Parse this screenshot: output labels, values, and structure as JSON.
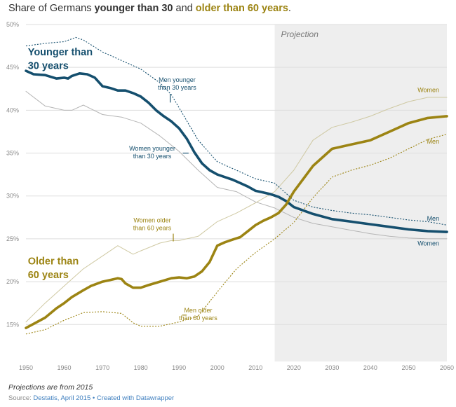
{
  "title": {
    "prefix": "Share  of Germans ",
    "young": "younger than 30",
    "middle": " and ",
    "old": "older than 60 years",
    "suffix": "."
  },
  "footer": {
    "note": "Projections  are from 2015",
    "source_label": "Source: ",
    "source_link": "Destatis, April 2015",
    "separator": " • ",
    "credit_link": "Created with Datawrapper"
  },
  "colors": {
    "young": "#154f6e",
    "old": "#9c8413",
    "grid": "#dddddd",
    "projection_band": "#eeeeee",
    "women_thin_old": "#cfc9a3",
    "women_thin_young": "#b5b5b5",
    "axis_text": "#8a8a8a"
  },
  "chart_data": {
    "type": "line",
    "title": "Share  of Germans younger than 30 and older than 60 years.",
    "xlim": [
      1950,
      2060
    ],
    "ylim": [
      12,
      50
    ],
    "x_ticks": [
      "1950",
      "1960",
      "1970",
      "1980",
      "1990",
      "2000",
      "2010",
      "2020",
      "2030",
      "2040",
      "2050",
      "2060"
    ],
    "y_ticks": [
      "15%",
      "20%",
      "25%",
      "30%",
      "35%",
      "40%",
      "45%",
      "50%"
    ],
    "y_tick_values": [
      15,
      20,
      25,
      30,
      35,
      40,
      45,
      50
    ],
    "grid": true,
    "projection": {
      "label": "Projection",
      "from": 2015,
      "to": 2060
    },
    "series": [
      {
        "name": "Younger than 30 years",
        "group": "young",
        "style": "thick",
        "x": [
          1950,
          1952,
          1955,
          1958,
          1960,
          1961,
          1962,
          1964,
          1966,
          1968,
          1970,
          1972,
          1974,
          1976,
          1978,
          1980,
          1982,
          1984,
          1986,
          1988,
          1990,
          1992,
          1994,
          1996,
          1998,
          2000,
          2002,
          2004,
          2006,
          2008,
          2010,
          2012,
          2014,
          2016,
          2018,
          2020,
          2025,
          2030,
          2035,
          2040,
          2045,
          2050,
          2055,
          2060
        ],
        "y": [
          44.6,
          44.2,
          44.1,
          43.7,
          43.8,
          43.7,
          44.0,
          44.3,
          44.2,
          43.8,
          42.8,
          42.6,
          42.3,
          42.3,
          42.0,
          41.6,
          40.9,
          40.0,
          39.3,
          38.7,
          37.9,
          36.7,
          35.1,
          33.8,
          33.0,
          32.5,
          32.2,
          31.9,
          31.5,
          31.1,
          30.6,
          30.4,
          30.2,
          29.9,
          29.4,
          28.7,
          27.9,
          27.3,
          27.0,
          26.7,
          26.4,
          26.1,
          25.9,
          25.8
        ]
      },
      {
        "name": "Men younger than 30 years",
        "group": "young",
        "style": "dotted",
        "x": [
          1950,
          1955,
          1960,
          1963,
          1965,
          1970,
          1975,
          1980,
          1985,
          1988,
          1990,
          1995,
          2000,
          2005,
          2010,
          2015,
          2020,
          2025,
          2030,
          2035,
          2040,
          2045,
          2050,
          2055,
          2060
        ],
        "y": [
          47.5,
          47.8,
          48.0,
          48.5,
          48.2,
          46.8,
          45.8,
          44.8,
          43.2,
          41.8,
          40.3,
          36.5,
          34.0,
          33.0,
          32.0,
          31.5,
          29.5,
          28.7,
          28.3,
          28.0,
          27.8,
          27.5,
          27.2,
          27.0,
          26.6
        ]
      },
      {
        "name": "Women younger than 30 years",
        "group": "young",
        "style": "thin",
        "x": [
          1950,
          1955,
          1960,
          1962,
          1965,
          1970,
          1975,
          1980,
          1985,
          1990,
          1995,
          2000,
          2005,
          2010,
          2015,
          2020,
          2025,
          2030,
          2035,
          2040,
          2045,
          2050,
          2055,
          2060
        ],
        "y": [
          42.2,
          40.5,
          40.0,
          40.0,
          40.6,
          39.5,
          39.2,
          38.5,
          37.0,
          35.2,
          33.0,
          31.0,
          30.5,
          29.3,
          28.6,
          27.5,
          26.8,
          26.4,
          26.0,
          25.6,
          25.3,
          25.1,
          25.0,
          25.0
        ]
      },
      {
        "name": "Older than 60 years",
        "group": "old",
        "style": "thick",
        "x": [
          1950,
          1955,
          1958,
          1960,
          1962,
          1965,
          1967,
          1970,
          1972,
          1974,
          1975,
          1976,
          1978,
          1980,
          1982,
          1985,
          1988,
          1990,
          1992,
          1994,
          1996,
          1998,
          2000,
          2002,
          2004,
          2006,
          2008,
          2010,
          2012,
          2014,
          2016,
          2018,
          2020,
          2025,
          2030,
          2035,
          2040,
          2045,
          2050,
          2055,
          2060
        ],
        "y": [
          14.6,
          15.8,
          16.9,
          17.5,
          18.2,
          19.0,
          19.5,
          20.0,
          20.2,
          20.4,
          20.3,
          19.8,
          19.3,
          19.3,
          19.6,
          20.0,
          20.4,
          20.5,
          20.4,
          20.6,
          21.2,
          22.3,
          24.2,
          24.6,
          24.9,
          25.2,
          25.9,
          26.6,
          27.1,
          27.5,
          28.0,
          29.0,
          30.5,
          33.5,
          35.5,
          36.0,
          36.5,
          37.5,
          38.5,
          39.1,
          39.3
        ]
      },
      {
        "name": "Women older than 60 years",
        "group": "old",
        "style": "thin",
        "x": [
          1950,
          1955,
          1960,
          1965,
          1970,
          1974,
          1976,
          1978,
          1980,
          1985,
          1988,
          1990,
          1995,
          2000,
          2005,
          2010,
          2015,
          2020,
          2025,
          2030,
          2035,
          2040,
          2045,
          2050,
          2055,
          2060
        ],
        "y": [
          15.3,
          17.5,
          19.5,
          21.5,
          23.0,
          24.2,
          23.7,
          23.2,
          23.6,
          24.5,
          24.8,
          24.8,
          25.3,
          27.0,
          28.0,
          29.2,
          30.5,
          33.0,
          36.5,
          38.0,
          38.6,
          39.3,
          40.2,
          41.0,
          41.5,
          41.5
        ]
      },
      {
        "name": "Men older than 60 years",
        "group": "old",
        "style": "dotted",
        "x": [
          1950,
          1955,
          1960,
          1965,
          1970,
          1975,
          1978,
          1980,
          1985,
          1990,
          1995,
          2000,
          2005,
          2010,
          2015,
          2020,
          2025,
          2030,
          2035,
          2040,
          2045,
          2050,
          2055,
          2060
        ],
        "y": [
          13.9,
          14.4,
          15.5,
          16.4,
          16.5,
          16.3,
          15.2,
          14.8,
          14.8,
          15.3,
          16.0,
          18.8,
          21.5,
          23.4,
          25.0,
          26.9,
          29.8,
          32.2,
          33.0,
          33.6,
          34.4,
          35.5,
          36.6,
          37.2
        ]
      }
    ],
    "annotations": [
      {
        "text": "Younger than",
        "group": "young",
        "style": "big",
        "x": 1950.5,
        "y": 46.4
      },
      {
        "text": "30 years",
        "group": "young",
        "style": "big",
        "x": 1950.5,
        "y": 44.8
      },
      {
        "text": "Men younger",
        "group": "young",
        "style": "small",
        "x": 1989.5,
        "y": 43.3,
        "anchor": "middle"
      },
      {
        "text": "than 30 years",
        "group": "young",
        "style": "small",
        "x": 1989.5,
        "y": 42.4,
        "anchor": "middle"
      },
      {
        "text": "Women younger",
        "group": "young",
        "style": "small",
        "x": 1983.0,
        "y": 35.3,
        "anchor": "middle"
      },
      {
        "text": "than 30 years",
        "group": "young",
        "style": "small",
        "x": 1983.0,
        "y": 34.4,
        "anchor": "middle"
      },
      {
        "text": "Women older",
        "group": "old",
        "style": "small",
        "x": 1983.0,
        "y": 26.9,
        "anchor": "middle"
      },
      {
        "text": "than 60 years",
        "group": "old",
        "style": "small",
        "x": 1983.0,
        "y": 26.0,
        "anchor": "middle"
      },
      {
        "text": "Older than",
        "group": "old",
        "style": "big",
        "x": 1950.5,
        "y": 22.0
      },
      {
        "text": "60 years",
        "group": "old",
        "style": "big",
        "x": 1950.5,
        "y": 20.4
      },
      {
        "text": "Men older",
        "group": "old",
        "style": "small",
        "x": 1995.0,
        "y": 16.4,
        "anchor": "middle"
      },
      {
        "text": "than 60 years",
        "group": "old",
        "style": "small",
        "x": 1995.0,
        "y": 15.5,
        "anchor": "middle"
      },
      {
        "text": "Women",
        "group": "old",
        "style": "small",
        "x": 2058.0,
        "y": 42.1,
        "anchor": "end"
      },
      {
        "text": "Men",
        "group": "old",
        "style": "small",
        "x": 2058.0,
        "y": 36.1,
        "anchor": "end"
      },
      {
        "text": "Men",
        "group": "young",
        "style": "small",
        "x": 2058.0,
        "y": 27.1,
        "anchor": "end"
      },
      {
        "text": "Women",
        "group": "young",
        "style": "small",
        "x": 2058.0,
        "y": 24.2,
        "anchor": "end"
      }
    ]
  }
}
